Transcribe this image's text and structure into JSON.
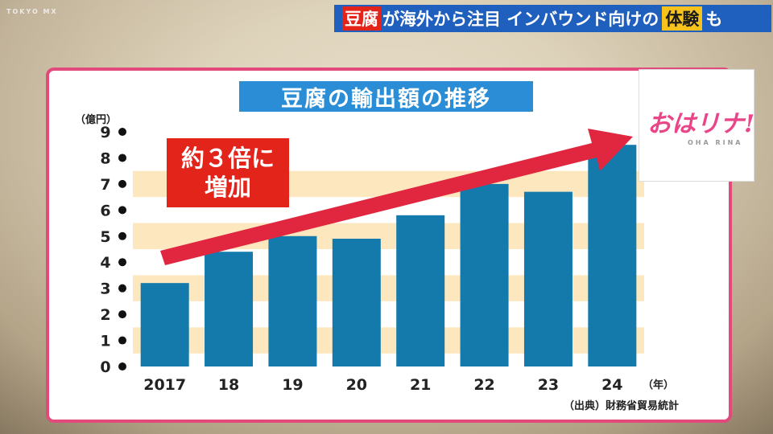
{
  "channel": {
    "logo": "TOKYO MX"
  },
  "banner": {
    "part1": "豆腐",
    "part2": "が海外から注目 インバウンド向けの",
    "part3": "体験",
    "part4": "も"
  },
  "program_logo": {
    "text": "おはリナ!",
    "sub": "OHA RINA"
  },
  "callout": {
    "line1": "約３倍に",
    "line2": "増加"
  },
  "colors": {
    "bar": "#147aab",
    "stripe": "#fde7bf",
    "arrow": "#e0273f",
    "frame": "#e24a7c",
    "title_bg": "#2b8dd6"
  },
  "chart_data": {
    "type": "bar",
    "title": "豆腐の輸出額の推移",
    "ylabel": "（億円）",
    "xlabel": "（年）",
    "categories": [
      "2017",
      "18",
      "19",
      "20",
      "21",
      "22",
      "23",
      "24"
    ],
    "values": [
      3.2,
      4.4,
      5.0,
      4.9,
      5.8,
      7.0,
      6.7,
      8.5
    ],
    "ylim": [
      0,
      9
    ],
    "yticks": [
      0,
      1,
      2,
      3,
      4,
      5,
      6,
      7,
      8,
      9
    ],
    "source": "（出典）財務省貿易統計"
  }
}
